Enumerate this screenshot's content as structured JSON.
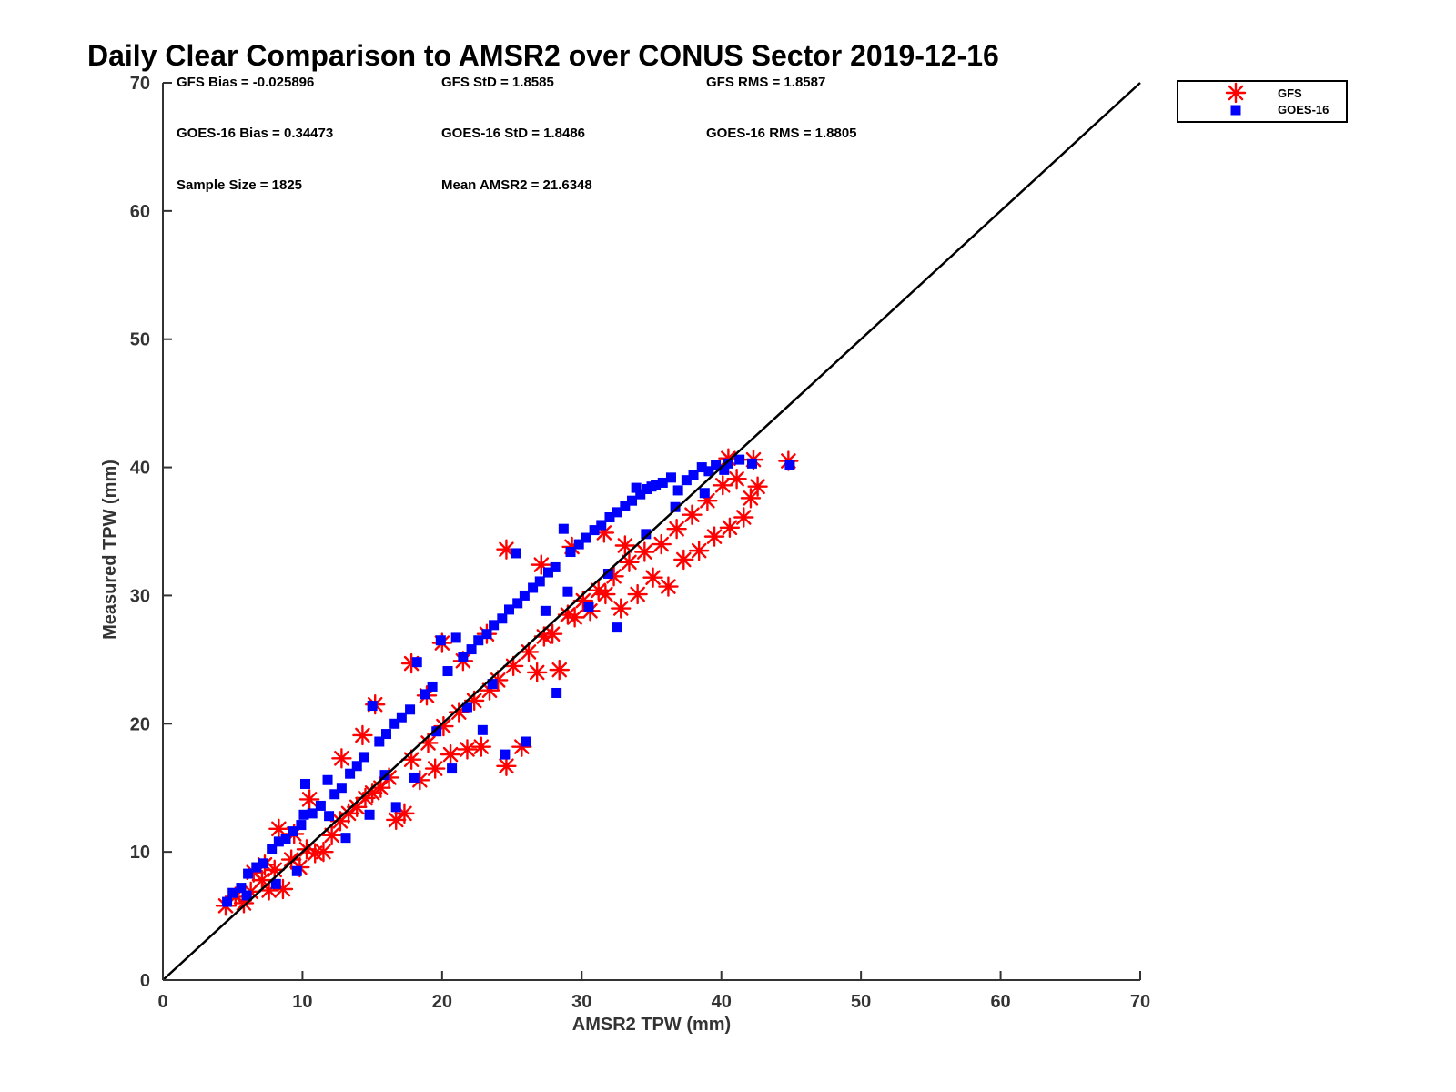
{
  "chart_data": {
    "type": "scatter",
    "title": "Daily Clear Comparison to AMSR2 over CONUS Sector 2019-12-16",
    "xlabel": "AMSR2 TPW (mm)",
    "ylabel": "Measured TPW (mm)",
    "xlim": [
      0,
      70
    ],
    "ylim": [
      0,
      70
    ],
    "xticks": [
      "0",
      "10",
      "20",
      "30",
      "40",
      "50",
      "60",
      "70"
    ],
    "yticks": [
      "0",
      "10",
      "20",
      "30",
      "40",
      "50",
      "60",
      "70"
    ],
    "grid": false,
    "legend_position": "outside-top-right",
    "stats": {
      "gfs_bias": "GFS Bias = -0.025896",
      "gfs_std": "GFS StD = 1.8585",
      "gfs_rms": "GFS RMS = 1.8587",
      "goes_bias": "GOES-16 Bias = 0.34473",
      "goes_std": "GOES-16 StD = 1.8486",
      "goes_rms": "GOES-16 RMS = 1.8805",
      "sample_size": "Sample Size = 1825",
      "mean_amsr2": "Mean AMSR2 = 21.6348"
    },
    "reference_line": {
      "x": [
        0,
        70
      ],
      "y": [
        0,
        70
      ],
      "color": "#000000"
    },
    "series": [
      {
        "name": "GFS",
        "marker": "asterisk",
        "color": "#ff0000",
        "points": [
          [
            4.5,
            5.8
          ],
          [
            5.2,
            6.5
          ],
          [
            5.8,
            6.0
          ],
          [
            6.3,
            6.9
          ],
          [
            7.1,
            7.8
          ],
          [
            7.6,
            7.0
          ],
          [
            8.0,
            8.6
          ],
          [
            8.6,
            7.1
          ],
          [
            9.2,
            9.4
          ],
          [
            9.8,
            8.8
          ],
          [
            10.3,
            10.2
          ],
          [
            10.9,
            9.9
          ],
          [
            11.5,
            10.0
          ],
          [
            12.1,
            11.3
          ],
          [
            12.7,
            12.4
          ],
          [
            13.3,
            13.0
          ],
          [
            13.9,
            13.5
          ],
          [
            14.5,
            14.2
          ],
          [
            15.0,
            14.6
          ],
          [
            15.6,
            15.0
          ],
          [
            16.2,
            15.8
          ],
          [
            16.7,
            12.5
          ],
          [
            17.3,
            13.0
          ],
          [
            17.8,
            17.2
          ],
          [
            18.4,
            15.6
          ],
          [
            19.0,
            18.5
          ],
          [
            19.5,
            16.5
          ],
          [
            20.1,
            19.8
          ],
          [
            20.6,
            17.6
          ],
          [
            21.2,
            20.9
          ],
          [
            21.8,
            18.0
          ],
          [
            22.3,
            21.8
          ],
          [
            22.8,
            18.2
          ],
          [
            23.4,
            22.6
          ],
          [
            24.0,
            23.4
          ],
          [
            24.6,
            16.7
          ],
          [
            25.1,
            24.5
          ],
          [
            25.7,
            18.2
          ],
          [
            26.2,
            25.6
          ],
          [
            26.8,
            24.0
          ],
          [
            27.3,
            26.8
          ],
          [
            27.9,
            27.0
          ],
          [
            28.4,
            24.2
          ],
          [
            29.0,
            28.5
          ],
          [
            29.5,
            28.3
          ],
          [
            30.1,
            29.6
          ],
          [
            30.6,
            28.8
          ],
          [
            31.2,
            30.4
          ],
          [
            31.7,
            30.1
          ],
          [
            32.3,
            31.5
          ],
          [
            32.8,
            29.0
          ],
          [
            33.4,
            32.6
          ],
          [
            34.0,
            30.1
          ],
          [
            34.5,
            33.4
          ],
          [
            35.1,
            31.4
          ],
          [
            35.7,
            34.0
          ],
          [
            36.2,
            30.7
          ],
          [
            36.8,
            35.2
          ],
          [
            37.3,
            32.8
          ],
          [
            37.9,
            36.3
          ],
          [
            38.4,
            33.5
          ],
          [
            39.0,
            37.4
          ],
          [
            39.5,
            34.6
          ],
          [
            40.1,
            38.6
          ],
          [
            40.6,
            35.3
          ],
          [
            41.1,
            39.1
          ],
          [
            41.6,
            36.1
          ],
          [
            42.1,
            37.6
          ],
          [
            42.6,
            38.5
          ],
          [
            44.8,
            40.5
          ],
          [
            40.5,
            40.7
          ],
          [
            42.3,
            40.6
          ],
          [
            24.6,
            33.6
          ],
          [
            20.0,
            26.3
          ],
          [
            17.8,
            24.7
          ],
          [
            15.2,
            21.5
          ],
          [
            8.3,
            11.8
          ],
          [
            12.8,
            17.3
          ],
          [
            10.5,
            14.1
          ],
          [
            14.3,
            19.1
          ],
          [
            18.9,
            22.2
          ],
          [
            21.5,
            24.9
          ],
          [
            23.2,
            27.0
          ],
          [
            27.1,
            32.4
          ],
          [
            29.3,
            33.8
          ],
          [
            31.6,
            34.9
          ],
          [
            33.1,
            33.9
          ],
          [
            7.3,
            9.0
          ],
          [
            6.5,
            8.4
          ],
          [
            9.4,
            11.4
          ]
        ]
      },
      {
        "name": "GOES-16",
        "marker": "square",
        "color": "#0000ff",
        "points": [
          [
            4.6,
            6.1
          ],
          [
            5.0,
            6.8
          ],
          [
            5.6,
            7.2
          ],
          [
            6.1,
            8.3
          ],
          [
            6.7,
            8.8
          ],
          [
            7.2,
            9.1
          ],
          [
            7.8,
            10.2
          ],
          [
            8.3,
            10.8
          ],
          [
            8.8,
            11.0
          ],
          [
            9.3,
            11.6
          ],
          [
            9.9,
            12.1
          ],
          [
            10.2,
            15.3
          ],
          [
            10.7,
            13.0
          ],
          [
            11.3,
            13.6
          ],
          [
            11.8,
            15.6
          ],
          [
            12.3,
            14.5
          ],
          [
            12.8,
            15.0
          ],
          [
            13.4,
            16.1
          ],
          [
            13.9,
            16.7
          ],
          [
            14.4,
            17.4
          ],
          [
            15.0,
            21.4
          ],
          [
            15.5,
            18.6
          ],
          [
            16.0,
            19.2
          ],
          [
            16.6,
            20.0
          ],
          [
            17.1,
            20.5
          ],
          [
            17.7,
            21.1
          ],
          [
            18.2,
            24.8
          ],
          [
            18.8,
            22.3
          ],
          [
            19.3,
            22.9
          ],
          [
            19.9,
            26.5
          ],
          [
            20.4,
            24.1
          ],
          [
            21.0,
            26.7
          ],
          [
            21.5,
            25.2
          ],
          [
            22.1,
            25.8
          ],
          [
            22.6,
            26.5
          ],
          [
            23.2,
            27.0
          ],
          [
            23.7,
            27.7
          ],
          [
            24.3,
            28.2
          ],
          [
            24.8,
            28.9
          ],
          [
            25.4,
            29.4
          ],
          [
            25.9,
            30.0
          ],
          [
            26.5,
            30.6
          ],
          [
            27.0,
            31.1
          ],
          [
            27.6,
            31.8
          ],
          [
            28.1,
            32.2
          ],
          [
            28.7,
            35.2
          ],
          [
            29.2,
            33.4
          ],
          [
            29.8,
            34.0
          ],
          [
            30.3,
            34.5
          ],
          [
            30.9,
            35.1
          ],
          [
            31.4,
            35.5
          ],
          [
            32.0,
            36.1
          ],
          [
            32.5,
            36.5
          ],
          [
            33.1,
            37.0
          ],
          [
            33.6,
            37.4
          ],
          [
            34.2,
            37.9
          ],
          [
            34.7,
            38.3
          ],
          [
            35.3,
            38.6
          ],
          [
            35.8,
            38.8
          ],
          [
            36.4,
            39.2
          ],
          [
            36.9,
            38.2
          ],
          [
            37.5,
            39.0
          ],
          [
            38.0,
            39.4
          ],
          [
            38.6,
            40.0
          ],
          [
            39.1,
            39.7
          ],
          [
            39.6,
            40.2
          ],
          [
            40.2,
            39.8
          ],
          [
            41.3,
            40.6
          ],
          [
            42.2,
            40.3
          ],
          [
            44.9,
            40.2
          ],
          [
            16.7,
            13.5
          ],
          [
            18.0,
            15.8
          ],
          [
            20.7,
            16.5
          ],
          [
            22.9,
            19.5
          ],
          [
            24.5,
            17.6
          ],
          [
            26.0,
            18.6
          ],
          [
            28.2,
            22.4
          ],
          [
            32.5,
            27.5
          ],
          [
            35.0,
            38.5
          ],
          [
            33.9,
            38.4
          ],
          [
            25.3,
            33.3
          ],
          [
            10.1,
            12.9
          ],
          [
            13.1,
            11.1
          ],
          [
            14.8,
            12.9
          ],
          [
            19.6,
            19.4
          ],
          [
            21.8,
            21.3
          ],
          [
            27.4,
            28.8
          ],
          [
            30.5,
            29.1
          ],
          [
            34.6,
            34.8
          ],
          [
            38.8,
            38.0
          ],
          [
            9.6,
            8.5
          ],
          [
            11.9,
            12.8
          ],
          [
            15.9,
            16.0
          ],
          [
            23.6,
            23.1
          ],
          [
            29.0,
            30.3
          ],
          [
            31.9,
            31.7
          ],
          [
            36.7,
            36.9
          ],
          [
            8.1,
            7.5
          ],
          [
            6.0,
            6.6
          ],
          [
            40.5,
            40.3
          ]
        ]
      }
    ]
  }
}
